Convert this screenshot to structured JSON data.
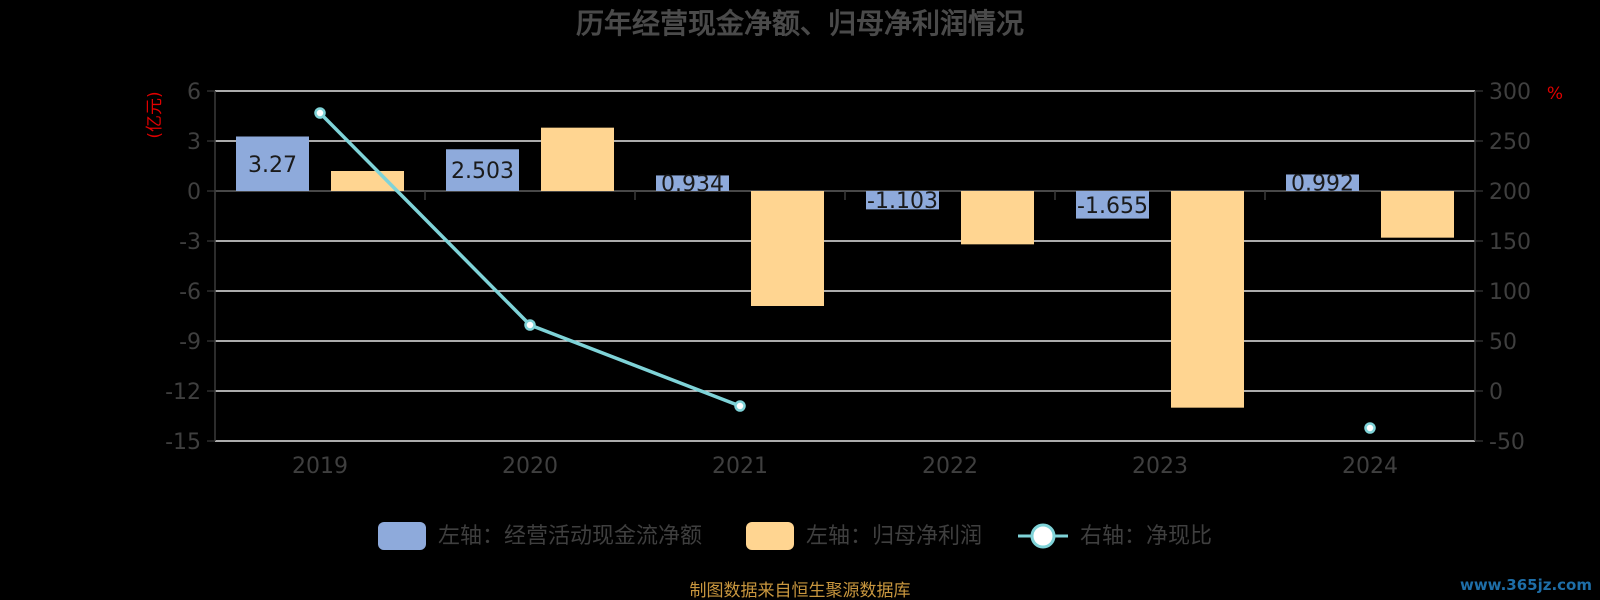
{
  "chart_data": {
    "type": "bar",
    "title": "历年经营现金净额、归母净利润情况",
    "categories": [
      "2019",
      "2020",
      "2021",
      "2022",
      "2023",
      "2024"
    ],
    "left_axis": {
      "unit": "(亿元)",
      "ylim": [
        -15,
        6
      ],
      "ticks": [
        6,
        3,
        0,
        -3,
        -6,
        -9,
        -12,
        -15
      ]
    },
    "right_axis": {
      "unit": "%",
      "ylim": [
        -50,
        300
      ],
      "ticks": [
        300,
        250,
        200,
        150,
        100,
        50,
        0,
        -50
      ]
    },
    "series": [
      {
        "name": "左轴：经营活动现金流净额",
        "type": "bar",
        "axis": "left",
        "color": "#8eaadb",
        "values": [
          3.27,
          2.503,
          0.934,
          -1.103,
          -1.655,
          0.992
        ],
        "labels": [
          "3.27",
          "2.503",
          "0.934",
          "-1.103",
          "-1.655",
          "0.992"
        ]
      },
      {
        "name": "左轴：归母净利润",
        "type": "bar",
        "axis": "left",
        "color": "#ffd591",
        "values": [
          1.2,
          3.8,
          -6.9,
          -3.2,
          -13.0,
          -2.8
        ]
      },
      {
        "name": "右轴：净现比",
        "type": "line",
        "axis": "right",
        "color": "#7fd3d8",
        "values": [
          278,
          66,
          -15,
          null,
          null,
          -37
        ]
      }
    ],
    "grid": true,
    "legend": "bottom"
  },
  "footer": {
    "source": "制图数据来自恒生聚源数据库",
    "watermark": "www.365jz.com"
  }
}
